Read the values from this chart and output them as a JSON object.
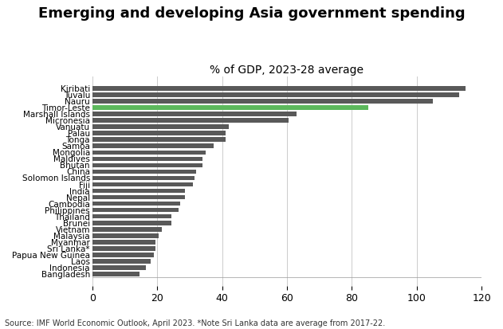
{
  "title": "Emerging and developing Asia government spending",
  "subtitle": "% of GDP, 2023-28 average",
  "source": "Source: IMF World Economic Outlook, April 2023. *Note Sri Lanka data are average from 2017-22.",
  "categories": [
    "Bangladesh",
    "Indonesia",
    "Laos",
    "Papua New Guinea",
    "Sri Lanka*",
    "Myanmar",
    "Malaysia",
    "Vietnam",
    "Brunei",
    "Thailand",
    "Philippines",
    "Cambodia",
    "Nepal",
    "India",
    "Fiji",
    "Solomon Islands",
    "China",
    "Bhutan",
    "Maldives",
    "Mongolia",
    "Samoa",
    "Tonga",
    "Palau",
    "Vanuatu",
    "Micronesia",
    "Marshall Islands",
    "Timor-Leste",
    "Nauru",
    "Tuvalu",
    "Kiribati"
  ],
  "values": [
    14.5,
    16.5,
    18.0,
    19.0,
    19.5,
    19.5,
    20.5,
    21.5,
    24.5,
    24.5,
    26.5,
    27.0,
    28.5,
    28.5,
    31.0,
    31.5,
    32.0,
    34.0,
    34.0,
    35.0,
    37.5,
    41.0,
    41.0,
    42.0,
    60.5,
    63.0,
    85.0,
    105.0,
    113.0,
    115.0
  ],
  "bar_color_default": "#595959",
  "bar_color_highlight": "#5cb85c",
  "highlight_index": 26,
  "xlim": [
    0,
    120
  ],
  "xticks": [
    0,
    20,
    40,
    60,
    80,
    100,
    120
  ],
  "title_fontsize": 13,
  "subtitle_fontsize": 10,
  "label_fontsize": 7.5,
  "tick_fontsize": 9,
  "source_fontsize": 7.0,
  "bar_height": 0.7,
  "background_color": "#ffffff",
  "ax_background_color": "#ffffff",
  "grid_color": "#cccccc"
}
